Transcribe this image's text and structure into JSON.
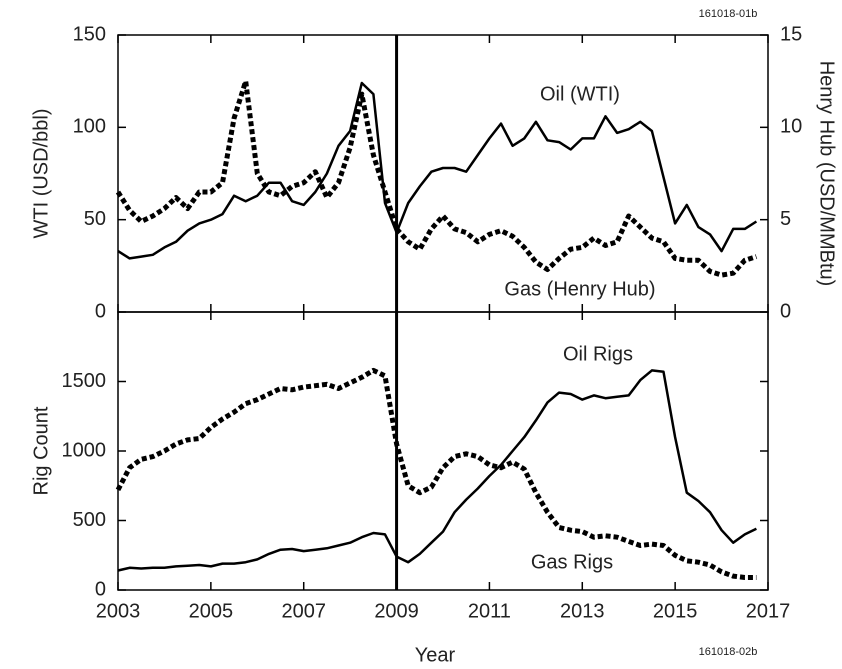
{
  "chart_data": [
    {
      "type": "line",
      "figure_id": "161018-01b",
      "ylabel": "WTI (USD/bbl)",
      "y2label": "Henry Hub (USD/MMBtu)",
      "xlim": [
        2003,
        2017
      ],
      "xticks": [
        2003,
        2005,
        2007,
        2009,
        2011,
        2013,
        2015,
        2017
      ],
      "ylim": [
        0,
        150
      ],
      "yticks": [
        0,
        50,
        100,
        150
      ],
      "y2lim": [
        0,
        15
      ],
      "y2ticks": [
        0,
        5,
        10,
        15
      ],
      "vline": 2009,
      "x": [
        2003,
        2003.25,
        2003.5,
        2003.75,
        2004,
        2004.25,
        2004.5,
        2004.75,
        2005,
        2005.25,
        2005.5,
        2005.75,
        2006,
        2006.25,
        2006.5,
        2006.75,
        2007,
        2007.25,
        2007.5,
        2007.75,
        2008,
        2008.25,
        2008.5,
        2008.75,
        2009,
        2009.25,
        2009.5,
        2009.75,
        2010,
        2010.25,
        2010.5,
        2010.75,
        2011,
        2011.25,
        2011.5,
        2011.75,
        2012,
        2012.25,
        2012.5,
        2012.75,
        2013,
        2013.25,
        2013.5,
        2013.75,
        2014,
        2014.25,
        2014.5,
        2014.75,
        2015,
        2015.25,
        2015.5,
        2015.75,
        2016,
        2016.25,
        2016.5,
        2016.75
      ],
      "series": [
        {
          "name": "Oil (WTI)",
          "color": "#000000",
          "style": "solid",
          "axis": "y",
          "values": [
            33,
            29,
            30,
            31,
            35,
            38,
            44,
            48,
            50,
            53,
            63,
            60,
            63,
            70,
            70,
            60,
            58,
            65,
            75,
            90,
            98,
            124,
            118,
            59,
            43,
            59,
            68,
            76,
            78,
            78,
            76,
            85,
            94,
            102,
            90,
            94,
            103,
            93,
            92,
            88,
            94,
            94,
            106,
            97,
            99,
            103,
            98,
            73,
            48,
            58,
            46,
            42,
            33,
            45,
            45,
            49
          ]
        },
        {
          "name": "Gas (Henry Hub)",
          "color": "#000000",
          "style": "dashed",
          "axis": "y2",
          "values": [
            6.5,
            5.5,
            4.9,
            5.2,
            5.6,
            6.2,
            5.6,
            6.5,
            6.5,
            7.0,
            10.5,
            12.5,
            7.5,
            6.5,
            6.3,
            6.8,
            7.0,
            7.6,
            6.2,
            7.0,
            8.9,
            11.8,
            8.5,
            6.5,
            4.5,
            3.8,
            3.4,
            4.5,
            5.2,
            4.5,
            4.3,
            3.8,
            4.2,
            4.4,
            4.1,
            3.5,
            2.7,
            2.3,
            2.9,
            3.4,
            3.5,
            4.0,
            3.6,
            3.8,
            5.2,
            4.6,
            4.0,
            3.8,
            2.9,
            2.8,
            2.8,
            2.2,
            2.0,
            2.1,
            2.8,
            3.0
          ]
        }
      ]
    },
    {
      "type": "line",
      "figure_id": "161018-02b",
      "xlabel": "Year",
      "ylabel": "Rig Count",
      "xlim": [
        2003,
        2017
      ],
      "xticks": [
        2003,
        2005,
        2007,
        2009,
        2011,
        2013,
        2015,
        2017
      ],
      "ylim": [
        0,
        2000
      ],
      "yticks": [
        0,
        500,
        1000,
        1500
      ],
      "vline": 2009,
      "x": [
        2003,
        2003.25,
        2003.5,
        2003.75,
        2004,
        2004.25,
        2004.5,
        2004.75,
        2005,
        2005.25,
        2005.5,
        2005.75,
        2006,
        2006.25,
        2006.5,
        2006.75,
        2007,
        2007.25,
        2007.5,
        2007.75,
        2008,
        2008.25,
        2008.5,
        2008.75,
        2009,
        2009.25,
        2009.5,
        2009.75,
        2010,
        2010.25,
        2010.5,
        2010.75,
        2011,
        2011.25,
        2011.5,
        2011.75,
        2012,
        2012.25,
        2012.5,
        2012.75,
        2013,
        2013.25,
        2013.5,
        2013.75,
        2014,
        2014.25,
        2014.5,
        2014.75,
        2015,
        2015.25,
        2015.5,
        2015.75,
        2016,
        2016.25,
        2016.5,
        2016.75
      ],
      "series": [
        {
          "name": "Oil Rigs",
          "color": "#000000",
          "style": "solid",
          "axis": "y",
          "values": [
            140,
            160,
            155,
            160,
            160,
            170,
            175,
            180,
            170,
            190,
            190,
            200,
            220,
            260,
            290,
            295,
            280,
            290,
            300,
            320,
            340,
            380,
            410,
            400,
            240,
            200,
            260,
            340,
            420,
            560,
            650,
            730,
            820,
            900,
            1000,
            1100,
            1220,
            1350,
            1420,
            1410,
            1370,
            1400,
            1380,
            1390,
            1400,
            1510,
            1580,
            1570,
            1100,
            700,
            640,
            560,
            430,
            340,
            400,
            440
          ]
        },
        {
          "name": "Gas Rigs",
          "color": "#000000",
          "style": "dashed",
          "axis": "y",
          "values": [
            720,
            880,
            940,
            960,
            1000,
            1050,
            1080,
            1090,
            1170,
            1230,
            1280,
            1340,
            1370,
            1410,
            1450,
            1440,
            1460,
            1470,
            1480,
            1450,
            1490,
            1530,
            1580,
            1540,
            1050,
            750,
            700,
            740,
            880,
            960,
            980,
            960,
            900,
            880,
            920,
            870,
            700,
            560,
            450,
            430,
            420,
            380,
            390,
            380,
            350,
            320,
            330,
            320,
            250,
            210,
            200,
            180,
            130,
            100,
            90,
            90
          ]
        }
      ]
    }
  ]
}
